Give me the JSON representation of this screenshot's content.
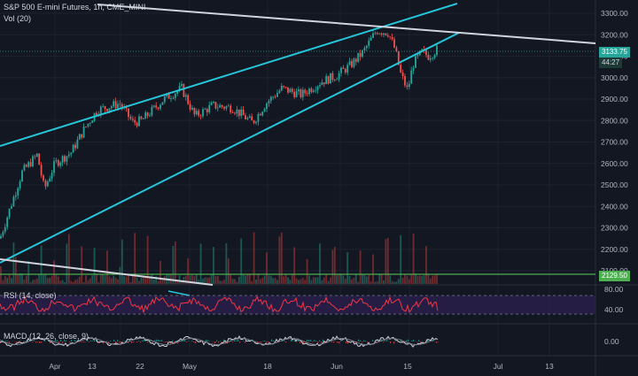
{
  "header": {
    "symbol_line": "S&P 500 E-mini Futures, 1h, CME_MINI",
    "volume_label": "Vol (20)"
  },
  "price_axis": {
    "ticks": [
      "3300.00",
      "3200.00",
      "3100.00",
      "3000.00",
      "2900.00",
      "2800.00",
      "2700.00",
      "2600.00",
      "2500.00",
      "2400.00",
      "2300.00",
      "2200.00",
      "2100.00"
    ],
    "last_price": "3133.75",
    "countdown": "44:27",
    "level_tag": "2129.50",
    "colors": {
      "last_price_bg": "#26a69a",
      "level_bg": "#4caf50"
    }
  },
  "rsi": {
    "label": "RSI (14, close)",
    "ticks": [
      "80.00",
      "40.00"
    ]
  },
  "macd": {
    "label": "MACD (12, 26, close, 9)",
    "ticks": [
      "0.00"
    ]
  },
  "time_axis": {
    "labels": [
      "Apr",
      "13",
      "22",
      "May",
      "18",
      "Jun",
      "15",
      "Jul",
      "13"
    ]
  },
  "colors": {
    "up": "#26a69a",
    "down": "#ef5350",
    "trendline": "#26c6da",
    "resistance": "#b2b5be",
    "rsi_line": "#f23645",
    "rsi_band": "#2a1f4a",
    "grid": "#1e222d"
  }
}
